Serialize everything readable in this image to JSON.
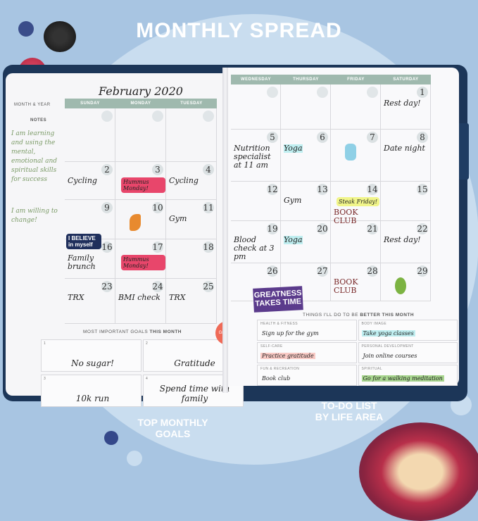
{
  "title": "MONTHLY SPREAD",
  "left_page": {
    "month_label": "MONTH & YEAR",
    "month_value": "February 2020",
    "notes_label": "NOTES",
    "notes": [
      "I am learning and using the mental, emotional and spiritual skills for success",
      "I am willing to change!"
    ],
    "days": [
      "SUNDAY",
      "MONDAY",
      "TUESDAY"
    ],
    "cells": [
      [
        {
          "n": ""
        },
        {
          "n": ""
        },
        {
          "n": ""
        }
      ],
      [
        {
          "n": "2",
          "t": "Cycling"
        },
        {
          "n": "3",
          "s": "Hummus Monday!"
        },
        {
          "n": "4",
          "t": "Cycling"
        }
      ],
      [
        {
          "n": "9"
        },
        {
          "n": "10",
          "i": "carrot"
        },
        {
          "n": "11",
          "t": "Gym"
        }
      ],
      [
        {
          "n": "16",
          "t": "Family brunch",
          "s2": "I BELIEVE in myself"
        },
        {
          "n": "17",
          "s": "Hummus Monday!"
        },
        {
          "n": "18"
        }
      ],
      [
        {
          "n": "23",
          "t": "TRX"
        },
        {
          "n": "24",
          "t": "BMI check"
        },
        {
          "n": "25",
          "t": "TRX"
        }
      ]
    ],
    "goals_title": "MOST IMPORTANT GOALS",
    "goals_title_bold": "THIS MONTH",
    "goals": [
      {
        "n": "1",
        "v": "No sugar!"
      },
      {
        "n": "2",
        "v": "Gratitude"
      },
      {
        "n": "3",
        "v": "10k run"
      },
      {
        "n": "4",
        "v": "Spend time with family"
      }
    ],
    "sticker_text": "Gratitude"
  },
  "right_page": {
    "days": [
      "WEDNESDAY",
      "THURSDAY",
      "FRIDAY",
      "SATURDAY"
    ],
    "cells": [
      [
        {
          "n": ""
        },
        {
          "n": ""
        },
        {
          "n": ""
        },
        {
          "n": "1",
          "t": "Rest day!"
        }
      ],
      [
        {
          "n": "5",
          "t": "Nutrition specialist at 11 am"
        },
        {
          "n": "6",
          "t": "Yoga"
        },
        {
          "n": "7",
          "i": "water"
        },
        {
          "n": "8",
          "t": "Date night"
        }
      ],
      [
        {
          "n": "12"
        },
        {
          "n": "13",
          "t": "Gym"
        },
        {
          "n": "14",
          "s": "Steak Friday!",
          "t": "BOOK CLUB"
        },
        {
          "n": "15"
        }
      ],
      [
        {
          "n": "19",
          "t": "Blood check at 3 pm"
        },
        {
          "n": "20",
          "t": "Yoga"
        },
        {
          "n": "21"
        },
        {
          "n": "22",
          "t": "Rest day!"
        }
      ],
      [
        {
          "n": "26"
        },
        {
          "n": "27"
        },
        {
          "n": "28",
          "t": "BOOK CLUB"
        },
        {
          "n": "29",
          "i": "apple"
        }
      ]
    ],
    "sticker": "GREATNESS TAKES TIME",
    "things_title": "THINGS I'LL DO TO BE",
    "things_title_bold": "BETTER THIS MONTH",
    "things": [
      {
        "cat": "Health & Fitness",
        "v": "Sign up for the gym"
      },
      {
        "cat": "Body image",
        "v": "Take yoga classes"
      },
      {
        "cat": "Self-care",
        "v": "Practice gratitude"
      },
      {
        "cat": "Personal development",
        "v": "Join online courses"
      },
      {
        "cat": "Fun & Recreation",
        "v": "Book club"
      },
      {
        "cat": "Spiritual",
        "v": "Go for a walking meditation"
      }
    ]
  },
  "callouts": {
    "goals": "TOP MONTHLY GOALS",
    "todo": "TO-DO LIST BY LIFE AREA"
  },
  "colors": {
    "background": "#a8c5e2",
    "cover": "#1c3658",
    "header": "#9fb9ae",
    "highlight_pink": "#e8466b"
  }
}
